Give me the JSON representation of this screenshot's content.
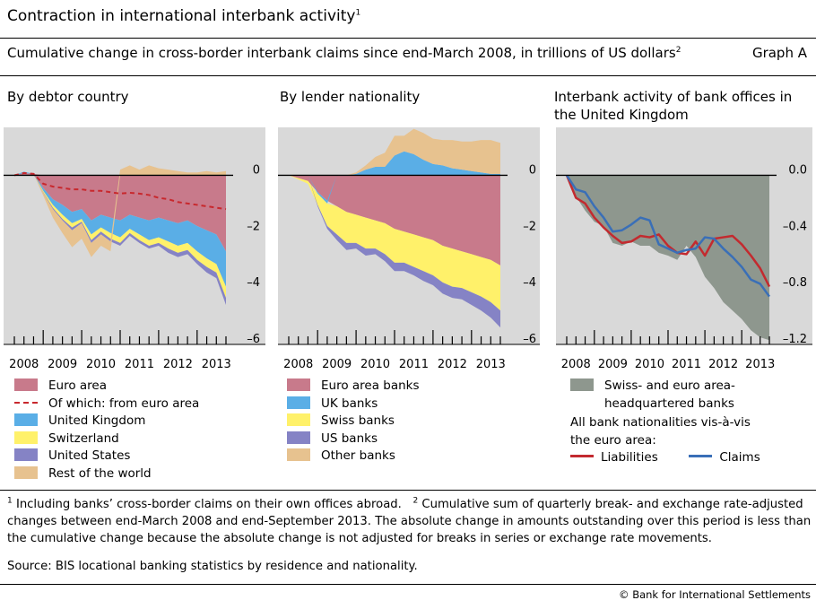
{
  "header": {
    "title": "Contraction in international interbank activity",
    "title_note": "1",
    "subtitle": "Cumulative change in cross-border interbank claims since end-March 2008, in trillions of US dollars",
    "subtitle_note": "2",
    "graph_label": "Graph A"
  },
  "colors": {
    "euro_area": "#c87a8b",
    "united_kingdom": "#5aaee6",
    "switzerland": "#fff16a",
    "united_states": "#8583c5",
    "rest_of_world": "#e7c28f",
    "euro_dash": "#c8282d",
    "swiss_euro_hq": "#8e978e",
    "liabilities": "#c32a2f",
    "claims": "#3a6fb7",
    "plot_bg": "#d9d9d9"
  },
  "chart_data": [
    {
      "type": "area",
      "title": "By debtor country",
      "x": [
        2008.25,
        2008.5,
        2008.75,
        2009.0,
        2009.25,
        2009.5,
        2009.75,
        2010.0,
        2010.25,
        2010.5,
        2010.75,
        2011.0,
        2011.25,
        2011.5,
        2011.75,
        2012.0,
        2012.25,
        2012.5,
        2012.75,
        2013.0,
        2013.25,
        2013.5,
        2013.75
      ],
      "xticks": [
        "2008",
        "2009",
        "2010",
        "2011",
        "2012",
        "2013"
      ],
      "ylim": [
        -6,
        1.7
      ],
      "yticks": [
        "0",
        "–2",
        "–4",
        "–6"
      ],
      "ytick_values": [
        0,
        -2,
        -4,
        -6
      ],
      "stack_order": "euro_area, united_kingdom, switzerland, united_states, rest_of_world",
      "series": [
        {
          "name": "Euro area",
          "key": "euro_area",
          "values": [
            0,
            0.08,
            0.05,
            -0.45,
            -0.85,
            -1.05,
            -1.3,
            -1.2,
            -1.6,
            -1.4,
            -1.5,
            -1.6,
            -1.4,
            -1.5,
            -1.6,
            -1.5,
            -1.6,
            -1.7,
            -1.6,
            -1.8,
            -1.95,
            -2.1,
            -2.7
          ]
        },
        {
          "name": "United Kingdom",
          "key": "united_kingdom",
          "values": [
            0,
            0.05,
            0,
            -0.1,
            -0.2,
            -0.35,
            -0.4,
            -0.35,
            -0.5,
            -0.45,
            -0.55,
            -0.6,
            -0.5,
            -0.6,
            -0.7,
            -0.7,
            -0.75,
            -0.8,
            -0.8,
            -0.9,
            -1.0,
            -1.05,
            -1.25
          ]
        },
        {
          "name": "Switzerland",
          "key": "switzerland",
          "values": [
            0,
            0,
            0,
            -0.05,
            -0.1,
            -0.15,
            -0.15,
            -0.1,
            -0.2,
            -0.15,
            -0.2,
            -0.2,
            -0.15,
            -0.2,
            -0.2,
            -0.2,
            -0.25,
            -0.25,
            -0.25,
            -0.3,
            -0.3,
            -0.3,
            -0.4
          ]
        },
        {
          "name": "United States",
          "key": "united_states",
          "values": [
            0,
            0,
            0,
            -0.02,
            -0.05,
            -0.05,
            -0.1,
            -0.05,
            -0.1,
            -0.1,
            -0.1,
            -0.1,
            -0.1,
            -0.1,
            -0.1,
            -0.1,
            -0.15,
            -0.15,
            -0.15,
            -0.15,
            -0.2,
            -0.2,
            -0.25
          ]
        },
        {
          "name": "Rest of the world",
          "key": "rest_of_world",
          "values": [
            0,
            0,
            0,
            -0.1,
            -0.3,
            -0.45,
            -0.6,
            -0.55,
            -0.5,
            -0.4,
            -0.35,
            0.2,
            0.35,
            0.2,
            0.35,
            0.25,
            0.2,
            0.15,
            0.1,
            0.1,
            0.15,
            0.1,
            0.15
          ]
        },
        {
          "name": "Of which: from euro area",
          "key": "euro_dash",
          "style": "dashed",
          "values": [
            0,
            0.08,
            0.05,
            -0.3,
            -0.4,
            -0.45,
            -0.5,
            -0.5,
            -0.55,
            -0.55,
            -0.6,
            -0.65,
            -0.62,
            -0.65,
            -0.7,
            -0.8,
            -0.85,
            -0.95,
            -1.0,
            -1.05,
            -1.1,
            -1.15,
            -1.2
          ]
        }
      ]
    },
    {
      "type": "area",
      "title": "By lender nationality",
      "x": [
        2008.25,
        2008.5,
        2008.75,
        2009.0,
        2009.25,
        2009.5,
        2009.75,
        2010.0,
        2010.25,
        2010.5,
        2010.75,
        2011.0,
        2011.25,
        2011.5,
        2011.75,
        2012.0,
        2012.25,
        2012.5,
        2012.75,
        2013.0,
        2013.25,
        2013.5,
        2013.75
      ],
      "xticks": [
        "2008",
        "2009",
        "2010",
        "2011",
        "2012",
        "2013"
      ],
      "ylim": [
        -6,
        1.7
      ],
      "yticks": [
        "0",
        "–2",
        "–4",
        "–6"
      ],
      "ytick_values": [
        0,
        -2,
        -4,
        -6
      ],
      "stack_order": "euro_area_banks, uk_banks, swiss_banks, us_banks, other_banks",
      "series": [
        {
          "name": "Euro area banks",
          "key": "euro_area",
          "values": [
            0,
            -0.1,
            -0.2,
            -0.6,
            -0.9,
            -1.1,
            -1.3,
            -1.4,
            -1.5,
            -1.6,
            -1.7,
            -1.9,
            -2.0,
            -2.1,
            -2.2,
            -2.3,
            -2.5,
            -2.6,
            -2.7,
            -2.8,
            -2.9,
            -3.0,
            -3.2
          ]
        },
        {
          "name": "UK banks",
          "key": "united_kingdom",
          "values": [
            0,
            0,
            0,
            -0.05,
            -0.1,
            0,
            0,
            0.05,
            0.2,
            0.3,
            0.3,
            0.7,
            0.85,
            0.75,
            0.55,
            0.4,
            0.35,
            0.25,
            0.2,
            0.15,
            0.1,
            0.05,
            0.05
          ]
        },
        {
          "name": "Swiss banks",
          "key": "switzerland",
          "values": [
            0,
            -0.05,
            -0.1,
            -0.4,
            -0.8,
            -1.0,
            -1.1,
            -1.0,
            -1.1,
            -1.0,
            -1.1,
            -1.2,
            -1.1,
            -1.15,
            -1.2,
            -1.25,
            -1.3,
            -1.35,
            -1.3,
            -1.35,
            -1.4,
            -1.5,
            -1.6
          ]
        },
        {
          "name": "US banks",
          "key": "united_states",
          "values": [
            0,
            0,
            0,
            -0.05,
            -0.1,
            -0.2,
            -0.25,
            -0.2,
            -0.25,
            -0.2,
            -0.25,
            -0.3,
            -0.3,
            -0.3,
            -0.35,
            -0.35,
            -0.4,
            -0.4,
            -0.4,
            -0.45,
            -0.5,
            -0.55,
            -0.6
          ]
        },
        {
          "name": "Other banks",
          "key": "rest_of_world",
          "values": [
            0,
            0,
            0,
            0,
            0,
            0,
            0,
            0.05,
            0.15,
            0.35,
            0.5,
            0.7,
            0.55,
            0.9,
            0.95,
            0.9,
            0.9,
            1.0,
            1.0,
            1.05,
            1.15,
            1.2,
            1.1
          ]
        }
      ]
    },
    {
      "type": "area",
      "title": "Interbank activity of bank offices in the United Kingdom",
      "x": [
        2008.25,
        2008.5,
        2008.75,
        2009.0,
        2009.25,
        2009.5,
        2009.75,
        2010.0,
        2010.25,
        2010.5,
        2010.75,
        2011.0,
        2011.25,
        2011.5,
        2011.75,
        2012.0,
        2012.25,
        2012.5,
        2012.75,
        2013.0,
        2013.25,
        2013.5,
        2013.75
      ],
      "xticks": [
        "2008",
        "2009",
        "2010",
        "2011",
        "2012",
        "2013"
      ],
      "ylim": [
        -1.2,
        0.34
      ],
      "yticks": [
        "0.0",
        "–0.4",
        "–0.8",
        "–1.2"
      ],
      "ytick_values": [
        0,
        -0.4,
        -0.8,
        -1.2
      ],
      "series": [
        {
          "name": "Swiss- and euro area-headquartered banks",
          "key": "swiss_euro_hq",
          "values": [
            0,
            -0.15,
            -0.25,
            -0.33,
            -0.36,
            -0.48,
            -0.5,
            -0.47,
            -0.5,
            -0.5,
            -0.55,
            -0.57,
            -0.6,
            -0.5,
            -0.58,
            -0.72,
            -0.8,
            -0.9,
            -0.96,
            -1.02,
            -1.1,
            -1.15,
            -1.17
          ]
        },
        {
          "name": "Liabilities",
          "key": "liabilities",
          "values": [
            0,
            -0.16,
            -0.2,
            -0.3,
            -0.37,
            -0.43,
            -0.48,
            -0.47,
            -0.43,
            -0.44,
            -0.42,
            -0.5,
            -0.55,
            -0.56,
            -0.47,
            -0.57,
            -0.45,
            -0.44,
            -0.43,
            -0.49,
            -0.57,
            -0.66,
            -0.79
          ]
        },
        {
          "name": "Claims",
          "key": "claims",
          "values": [
            0,
            -0.1,
            -0.12,
            -0.22,
            -0.3,
            -0.4,
            -0.39,
            -0.35,
            -0.3,
            -0.32,
            -0.49,
            -0.52,
            -0.55,
            -0.53,
            -0.52,
            -0.44,
            -0.45,
            -0.52,
            -0.58,
            -0.65,
            -0.74,
            -0.77,
            -0.86
          ]
        }
      ]
    }
  ],
  "panels": {
    "p1": {
      "title": "By debtor country"
    },
    "p2": {
      "title": "By lender nationality"
    },
    "p3": {
      "title_line1": "Interbank activity of bank offices in",
      "title_line2": "the United Kingdom"
    }
  },
  "legend1": [
    "Euro area",
    "Of which: from euro area",
    "United Kingdom",
    "Switzerland",
    "United States",
    "Rest of the world"
  ],
  "legend2": [
    "Euro area banks",
    "UK banks",
    "Swiss banks",
    "US banks",
    "Other banks"
  ],
  "legend3": {
    "area_line1": "Swiss- and euro area-",
    "area_line2": "headquartered banks",
    "caption_line1": "All bank nationalities vis-à-vis",
    "caption_line2": "the euro area:",
    "liabilities": "Liabilities",
    "claims": "Claims"
  },
  "footnotes": {
    "n1": "1",
    "t1": "Including banks’ cross-border claims on their own offices abroad.",
    "n2": "2",
    "t2": "Cumulative sum of quarterly break- and exchange rate-adjusted changes between end-March 2008 and end-September 2013. The absolute change in amounts outstanding over this period is less than the cumulative change because the absolute change is not adjusted for breaks in series or exchange rate movements."
  },
  "source": "Source: BIS locational banking statistics by residence and nationality.",
  "copyright": "© Bank for International Settlements"
}
